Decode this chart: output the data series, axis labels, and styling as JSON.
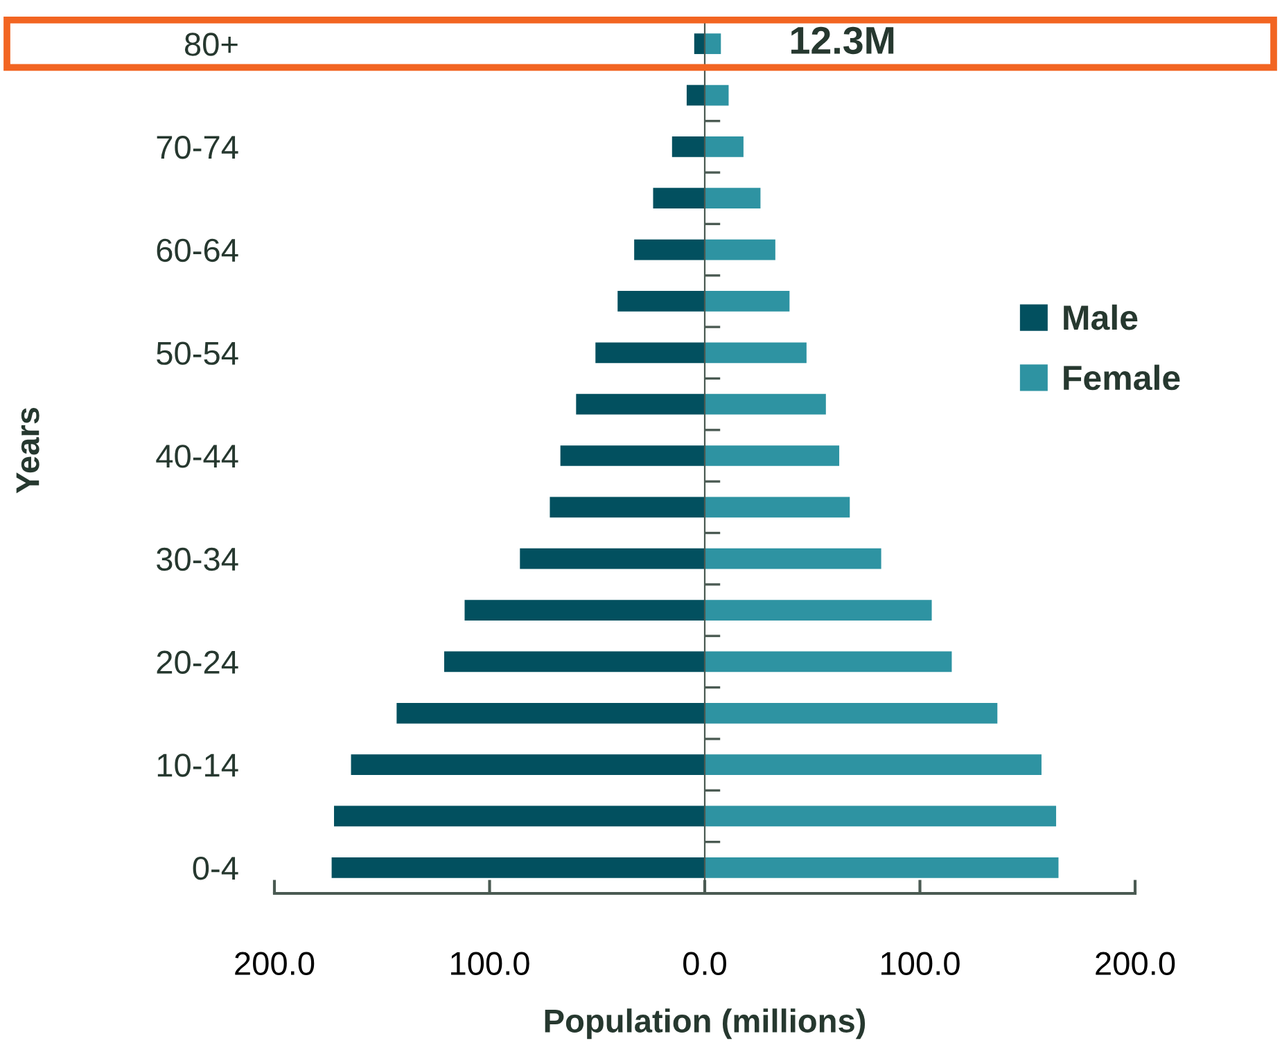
{
  "chart_data": {
    "type": "bar",
    "orientation": "horizontal",
    "xlabel": "Population (millions)",
    "ylabel": "Years",
    "categories": [
      "80+",
      null,
      "70-74",
      null,
      "60-64",
      null,
      "50-54",
      null,
      "40-44",
      null,
      "30-34",
      null,
      "20-24",
      null,
      "10-14",
      null,
      "0-4"
    ],
    "series": [
      {
        "name": "Male",
        "color": "#02505f",
        "values": [
          -4.9,
          -8.4,
          -15.2,
          -24.0,
          -32.8,
          -40.5,
          -50.8,
          -59.8,
          -67.1,
          -72.0,
          -85.9,
          -111.6,
          -121.1,
          -143.2,
          -164.4,
          -172.3,
          -173.4
        ]
      },
      {
        "name": "Female",
        "color": "#2e93a2",
        "values": [
          7.5,
          11.1,
          18.0,
          25.9,
          32.8,
          39.4,
          47.3,
          56.3,
          62.5,
          67.4,
          82.0,
          105.5,
          114.8,
          136.0,
          156.5,
          163.3,
          164.4
        ]
      }
    ],
    "xlim": [
      -200,
      200
    ],
    "xticks": [
      {
        "value": -200,
        "label": "200.0"
      },
      {
        "value": -100,
        "label": "100.0"
      },
      {
        "value": 0,
        "label": "0.0"
      },
      {
        "value": 100,
        "label": "100.0"
      },
      {
        "value": 200,
        "label": "200.0"
      }
    ],
    "annotations": [
      "12.3M"
    ],
    "stacked": true,
    "legend": "right"
  }
}
